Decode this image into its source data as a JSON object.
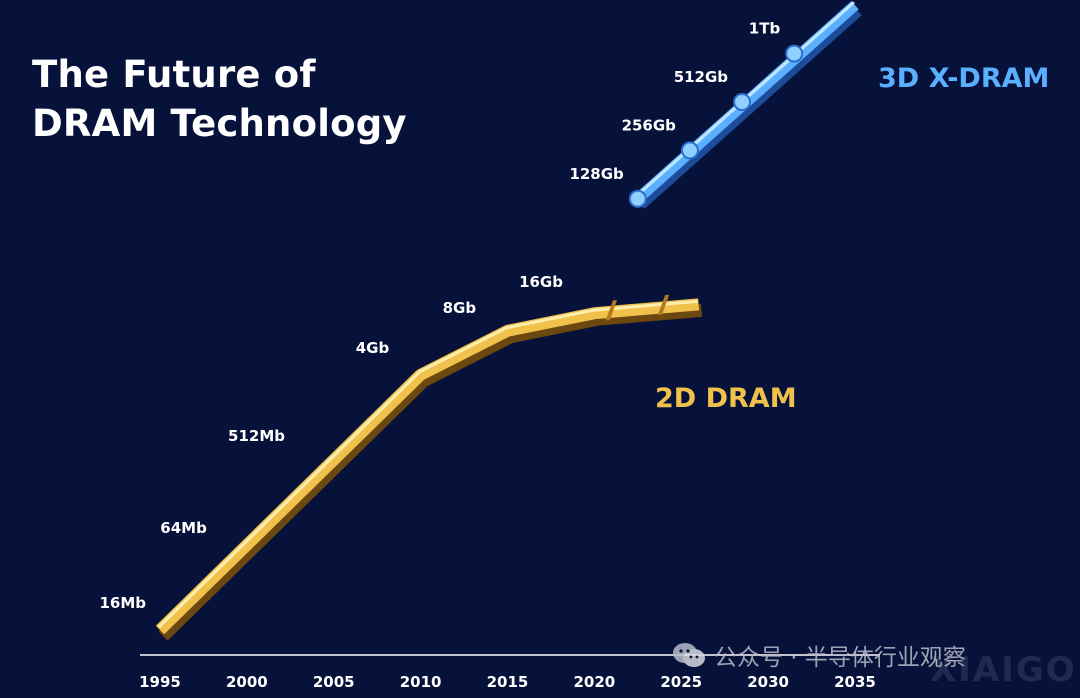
{
  "title": {
    "line1": "The Future of",
    "line2": "DRAM Technology"
  },
  "colors": {
    "background": "#07123a",
    "dram2d": "#f0c14b",
    "dram3d": "#5ab0ff",
    "text": "#ffffff"
  },
  "watermark": {
    "text": "公众号 · 半导体行业观察",
    "ghost": "XIAIGO",
    "icon": "wechat-icon"
  },
  "chart_data": {
    "type": "line",
    "x_ticks": [
      "1995",
      "2000",
      "2005",
      "2010",
      "2015",
      "2020",
      "2025",
      "2030",
      "2035"
    ],
    "xlim": [
      1995,
      2035
    ],
    "series": [
      {
        "name": "2D DRAM",
        "color": "#f0c14b",
        "x": [
          1995,
          2010,
          2015,
          2020,
          2026
        ],
        "y": [
          0,
          0.58,
          0.68,
          0.72,
          0.74
        ],
        "labels": [
          {
            "text": "16Mb",
            "x": 1995,
            "y": 0.0
          },
          {
            "text": "64Mb",
            "x": 1998.5,
            "y": 0.17
          },
          {
            "text": "512Mb",
            "x": 2003,
            "y": 0.38
          },
          {
            "text": "4Gb",
            "x": 2009,
            "y": 0.58
          },
          {
            "text": "8Gb",
            "x": 2014,
            "y": 0.67
          },
          {
            "text": "16Gb",
            "x": 2019,
            "y": 0.73
          }
        ]
      },
      {
        "name": "3D X-DRAM",
        "color": "#5ab0ff",
        "x": [
          2022.5,
          2035
        ],
        "y": [
          0.98,
          1.42
        ],
        "markers": [
          {
            "text": "128Gb",
            "x": 2022.5,
            "y": 0.98
          },
          {
            "text": "256Gb",
            "x": 2025.5,
            "y": 1.09
          },
          {
            "text": "512Gb",
            "x": 2028.5,
            "y": 1.2
          },
          {
            "text": "1Tb",
            "x": 2031.5,
            "y": 1.31
          }
        ]
      }
    ]
  }
}
